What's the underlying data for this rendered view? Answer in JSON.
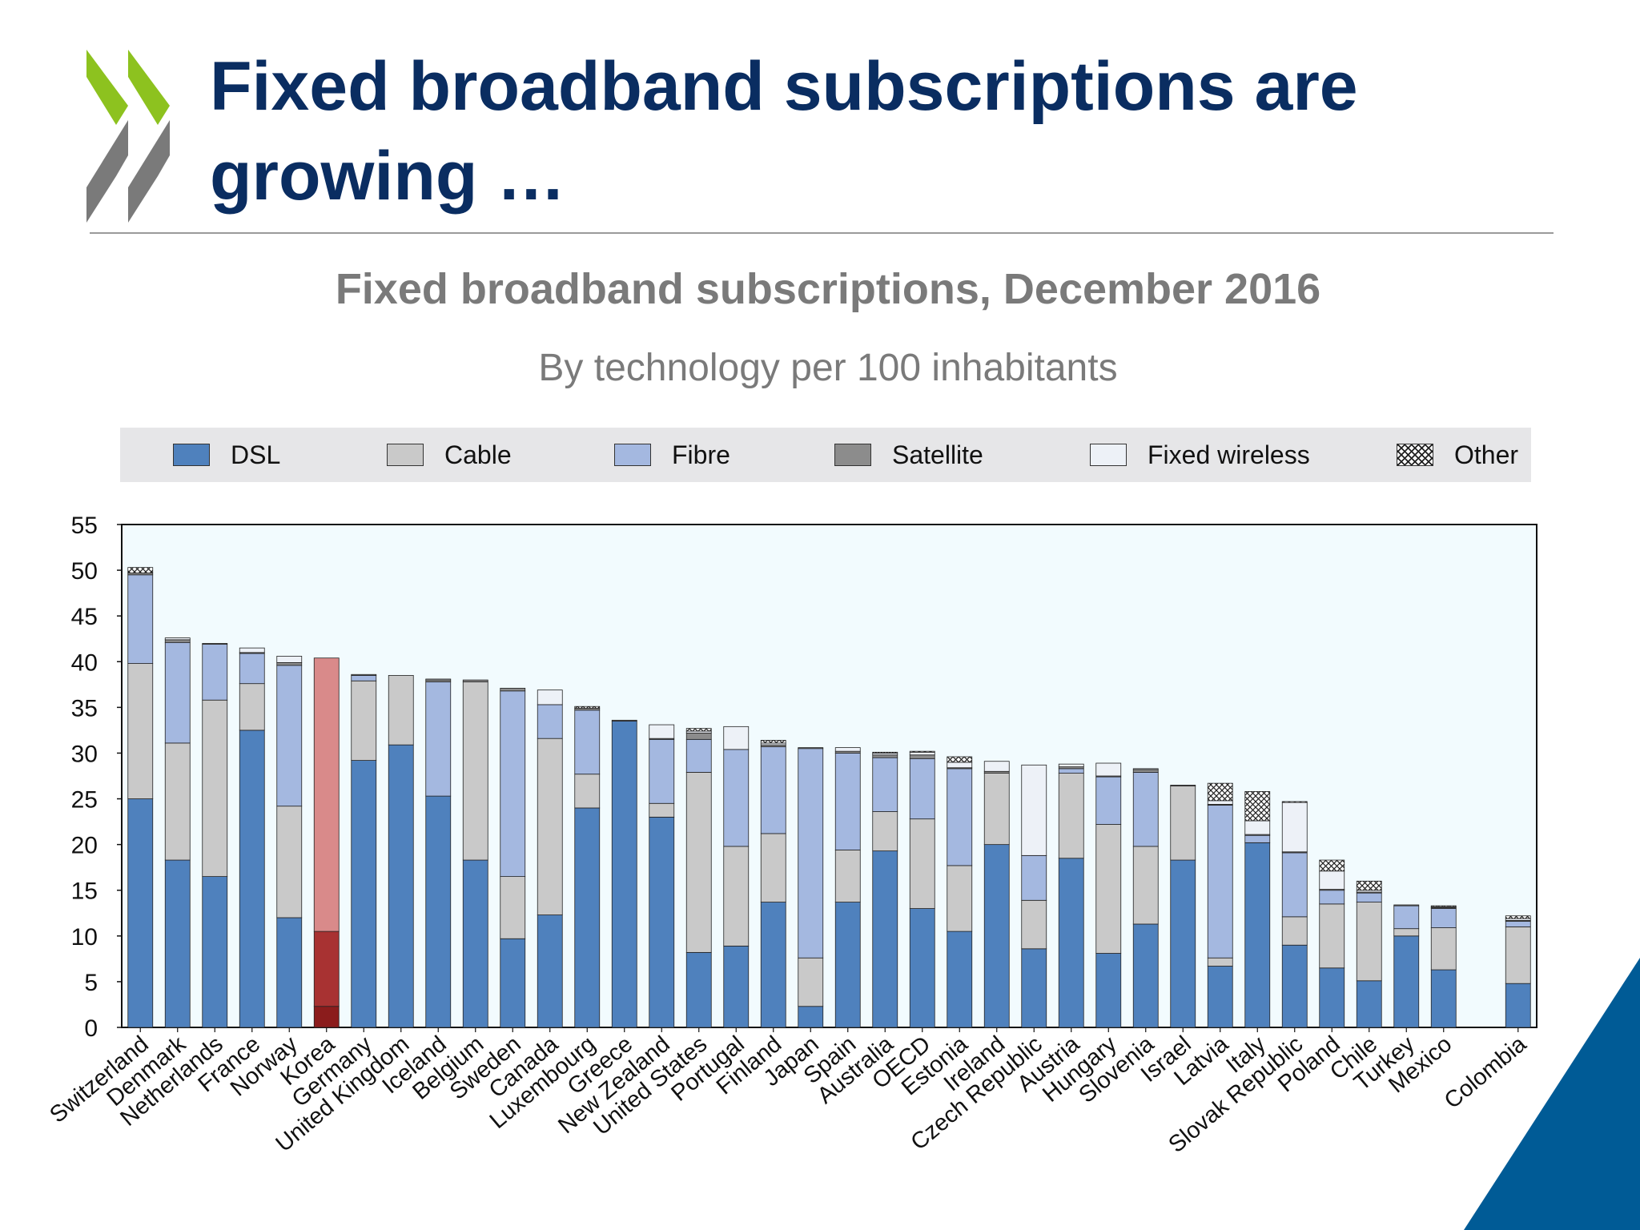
{
  "slide": {
    "title": "Fixed broadband subscriptions are\ngrowing …"
  },
  "colors": {
    "title": "#0a2d61",
    "logo_green": "#8dc21f",
    "logo_grey": "#7a7a7a",
    "corner_blue": "#005b96",
    "plot_background": "#f2fbfe",
    "korea_highlight": [
      "#8b1c1c",
      "#a83232",
      "#d98a8a"
    ]
  },
  "legend": {
    "items": [
      {
        "label": "DSL",
        "color": "#4f81bd"
      },
      {
        "label": "Cable",
        "color": "#c9c9c9"
      },
      {
        "label": "Fibre",
        "color": "#a4b8e0"
      },
      {
        "label": "Satellite",
        "color": "#8c8c8c"
      },
      {
        "label": "Fixed wireless",
        "color": "#edf1f7"
      },
      {
        "label": "Other",
        "color": "hatched"
      }
    ]
  },
  "chart_data": {
    "type": "bar",
    "stacked": true,
    "title": "Fixed broadband subscriptions, December 2016",
    "subtitle": "By technology per 100 inhabitants",
    "ylim": [
      0,
      55
    ],
    "yticks": [
      0,
      5,
      10,
      15,
      20,
      25,
      30,
      35,
      40,
      45,
      50,
      55
    ],
    "categories": [
      "Switzerland",
      "Denmark",
      "Netherlands",
      "France",
      "Norway",
      "Korea",
      "Germany",
      "United Kingdom",
      "Iceland",
      "Belgium",
      "Sweden",
      "Canada",
      "Luxembourg",
      "Greece",
      "New Zealand",
      "United States",
      "Portugal",
      "Finland",
      "Japan",
      "Spain",
      "Australia",
      "OECD",
      "Estonia",
      "Ireland",
      "Czech Republic",
      "Austria",
      "Hungary",
      "Slovenia",
      "Israel",
      "Latvia",
      "Italy",
      "Slovak Republic",
      "Poland",
      "Chile",
      "Turkey",
      "Mexico",
      "",
      "Colombia"
    ],
    "series": [
      {
        "name": "DSL",
        "values": [
          25.0,
          18.3,
          16.5,
          32.5,
          12.0,
          2.3,
          29.2,
          30.9,
          25.3,
          18.3,
          9.7,
          12.3,
          24.0,
          33.5,
          23.0,
          8.2,
          8.9,
          13.7,
          2.3,
          13.7,
          19.3,
          13.0,
          10.5,
          20.0,
          8.6,
          18.5,
          8.1,
          11.3,
          18.3,
          6.7,
          20.2,
          9.0,
          6.5,
          5.1,
          10.0,
          6.3,
          null,
          4.8
        ]
      },
      {
        "name": "Cable",
        "values": [
          14.8,
          12.8,
          19.3,
          5.1,
          12.2,
          8.2,
          8.7,
          7.6,
          0.0,
          19.5,
          6.8,
          19.3,
          3.7,
          0.0,
          1.5,
          19.7,
          10.9,
          7.5,
          5.3,
          5.7,
          4.3,
          9.8,
          7.2,
          7.8,
          5.3,
          9.3,
          14.1,
          8.5,
          8.1,
          0.9,
          0.0,
          3.1,
          7.0,
          8.6,
          0.8,
          4.6,
          null,
          6.2
        ]
      },
      {
        "name": "Fibre",
        "values": [
          9.7,
          11.0,
          6.1,
          3.3,
          15.4,
          29.9,
          0.6,
          0.0,
          12.5,
          0.0,
          20.3,
          3.7,
          7.0,
          0.0,
          7.0,
          3.6,
          10.6,
          9.5,
          22.9,
          10.6,
          5.9,
          6.6,
          10.6,
          0.0,
          4.9,
          0.5,
          5.2,
          8.1,
          0.0,
          16.7,
          0.8,
          7.0,
          1.5,
          1.0,
          2.5,
          2.1,
          null,
          0.6
        ]
      },
      {
        "name": "Satellite",
        "values": [
          0.2,
          0.3,
          0.1,
          0.1,
          0.3,
          0.0,
          0.1,
          0.0,
          0.2,
          0.2,
          0.3,
          0.0,
          0.2,
          0.1,
          0.1,
          0.7,
          0.0,
          0.2,
          0.1,
          0.2,
          0.3,
          0.4,
          0.1,
          0.2,
          0.0,
          0.2,
          0.1,
          0.3,
          0.1,
          0.1,
          0.1,
          0.1,
          0.1,
          0.1,
          0.1,
          0.1,
          null,
          0.1
        ]
      },
      {
        "name": "Fixed wireless",
        "values": [
          0.0,
          0.2,
          0.0,
          0.5,
          0.7,
          0.0,
          0.0,
          0.0,
          0.1,
          0.0,
          0.0,
          1.6,
          0.0,
          0.0,
          1.5,
          0.2,
          2.5,
          0.2,
          0.0,
          0.4,
          0.2,
          0.3,
          0.6,
          1.1,
          9.9,
          0.3,
          1.4,
          0.1,
          0.0,
          0.4,
          1.5,
          5.4,
          2.0,
          0.2,
          0.0,
          0.1,
          null,
          0.2
        ]
      },
      {
        "name": "Other",
        "values": [
          0.6,
          0.0,
          0.0,
          0.0,
          0.0,
          0.0,
          0.0,
          0.0,
          0.0,
          0.0,
          0.0,
          0.0,
          0.2,
          0.0,
          0.0,
          0.3,
          0.0,
          0.3,
          0.0,
          0.0,
          0.1,
          0.1,
          0.6,
          0.0,
          0.0,
          0.0,
          0.0,
          0.0,
          0.0,
          1.9,
          3.2,
          0.1,
          1.2,
          1.0,
          0.0,
          0.1,
          null,
          0.3
        ]
      }
    ],
    "highlight": "Korea",
    "xlabel": "",
    "ylabel": "",
    "grid": false,
    "legend_position": "top"
  }
}
